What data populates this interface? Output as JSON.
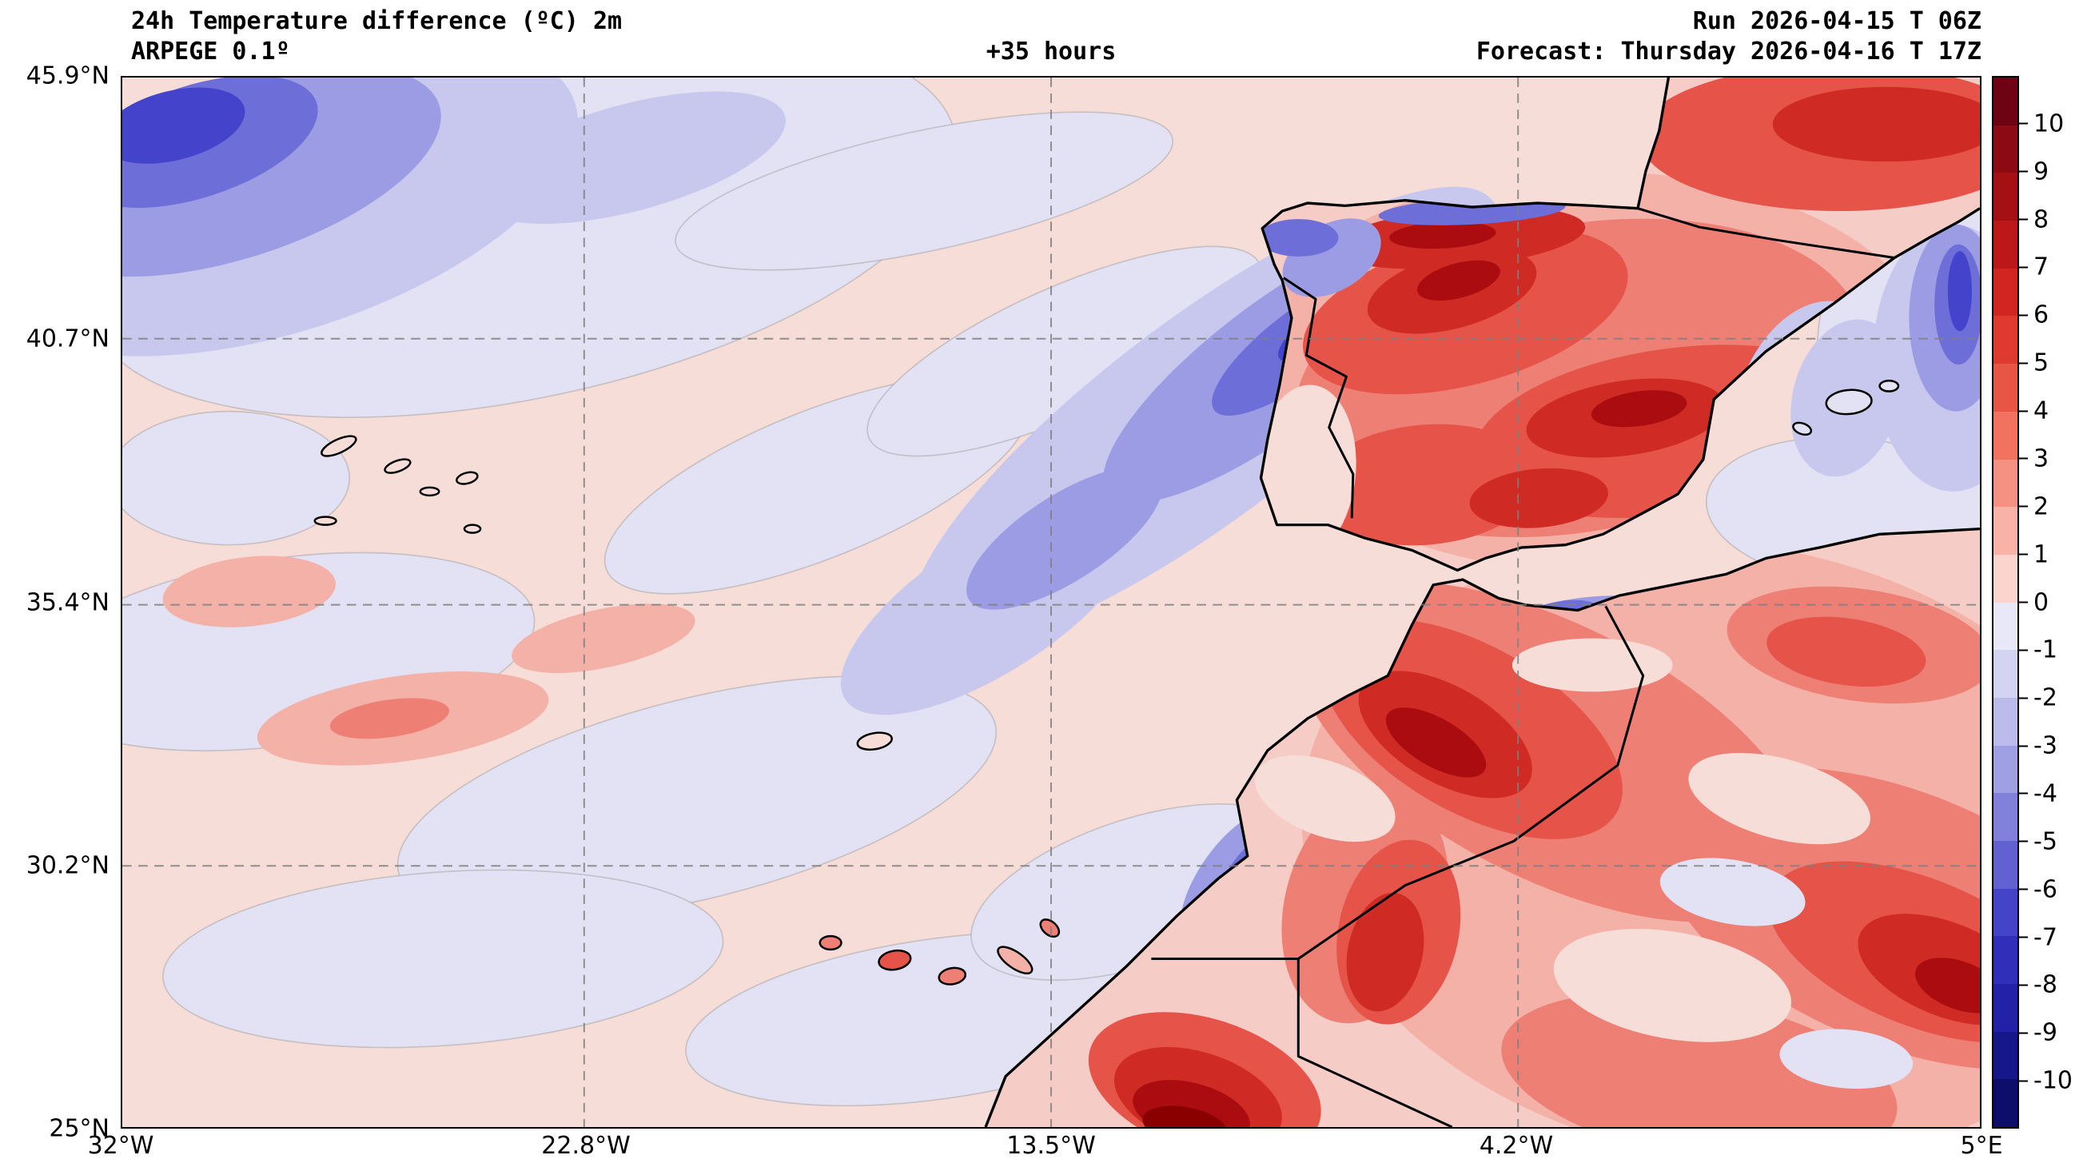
{
  "header": {
    "title": "24h Temperature difference (ºC) 2m",
    "model": "ARPEGE 0.1º",
    "lead_time": "+35 hours",
    "run": "Run 2026-04-15 T 06Z",
    "forecast": "Forecast: Thursday 2026-04-16 T 17Z"
  },
  "axes": {
    "y_ticks": [
      "45.9°N",
      "40.7°N",
      "35.4°N",
      "30.2°N",
      "25°N"
    ],
    "x_ticks": [
      "32°W",
      "22.8°W",
      "13.5°W",
      "4.2°W",
      "5°E"
    ]
  },
  "colorbar": {
    "tick_labels": [
      "10",
      "9",
      "8",
      "7",
      "6",
      "5",
      "4",
      "3",
      "2",
      "1",
      "0",
      "-1",
      "-2",
      "-3",
      "-4",
      "-5",
      "-6",
      "-7",
      "-8",
      "-9",
      "-10"
    ],
    "segment_colors": [
      "#6d0313",
      "#8c0a12",
      "#a51015",
      "#bc181a",
      "#d02521",
      "#de3a30",
      "#e95545",
      "#f1725f",
      "#f59180",
      "#f8b2a6",
      "#fbd5cd",
      "#e8e8f8",
      "#d3d3f2",
      "#bbbbec",
      "#9f9fe4",
      "#8181dc",
      "#6161d2",
      "#4444c8",
      "#2f2fbc",
      "#2222a8",
      "#17178c",
      "#0d0d6b"
    ]
  }
}
